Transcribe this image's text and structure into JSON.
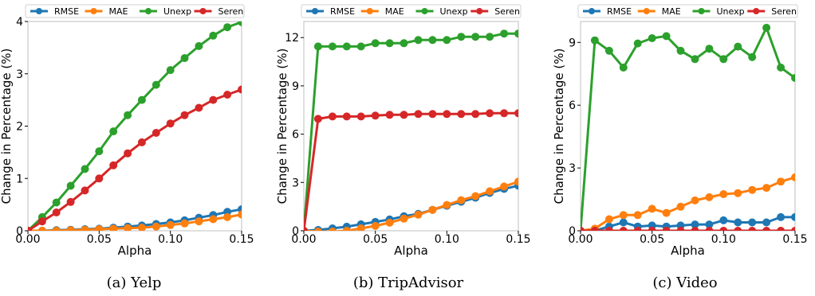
{
  "figure": {
    "panels": [
      {
        "caption": "(a) Yelp"
      },
      {
        "caption": "(b) TripAdvisor"
      },
      {
        "caption": "(c) Video"
      }
    ]
  },
  "chart_data": [
    {
      "type": "line",
      "title": "",
      "caption": "(a) Yelp",
      "xlabel": "Alpha",
      "ylabel": "Change in Percentage (%)",
      "xlim": [
        0.0,
        0.15
      ],
      "ylim": [
        0,
        4
      ],
      "xticks": [
        0.0,
        0.05,
        0.1,
        0.15
      ],
      "xtick_labels": [
        "0.00",
        "0.05",
        "0.10",
        "0.15"
      ],
      "yticks": [
        0,
        1,
        2,
        3,
        4
      ],
      "ytick_labels": [
        "0",
        "1",
        "2",
        "3",
        "4"
      ],
      "grid": false,
      "legend_position": "top",
      "x": [
        0.0,
        0.01,
        0.02,
        0.03,
        0.04,
        0.05,
        0.06,
        0.07,
        0.08,
        0.09,
        0.1,
        0.11,
        0.12,
        0.13,
        0.14,
        0.15
      ],
      "series": [
        {
          "name": "RMSE",
          "color": "#1f77b4",
          "values": [
            0,
            0.0,
            0.01,
            0.02,
            0.03,
            0.04,
            0.06,
            0.08,
            0.1,
            0.13,
            0.16,
            0.2,
            0.25,
            0.3,
            0.36,
            0.41
          ]
        },
        {
          "name": "MAE",
          "color": "#ff7f0e",
          "values": [
            0,
            0.0,
            0.0,
            0.01,
            0.02,
            0.03,
            0.04,
            0.05,
            0.06,
            0.08,
            0.11,
            0.14,
            0.18,
            0.22,
            0.26,
            0.31
          ]
        },
        {
          "name": "Unexp",
          "color": "#2ca02c",
          "values": [
            0,
            0.26,
            0.54,
            0.86,
            1.18,
            1.52,
            1.9,
            2.21,
            2.5,
            2.79,
            3.07,
            3.3,
            3.53,
            3.73,
            3.89,
            3.99
          ]
        },
        {
          "name": "Seren",
          "color": "#d62728",
          "values": [
            0,
            0.18,
            0.35,
            0.55,
            0.77,
            1.0,
            1.25,
            1.48,
            1.69,
            1.87,
            2.05,
            2.21,
            2.35,
            2.5,
            2.6,
            2.7
          ]
        }
      ]
    },
    {
      "type": "line",
      "title": "",
      "caption": "(b) TripAdvisor",
      "xlabel": "Alpha",
      "ylabel": "Change in Percentage (%)",
      "xlim": [
        0.0,
        0.15
      ],
      "ylim": [
        0,
        13
      ],
      "xticks": [
        0.0,
        0.05,
        0.1,
        0.15
      ],
      "xtick_labels": [
        "0.00",
        "0.05",
        "0.10",
        "0.15"
      ],
      "yticks": [
        0,
        3,
        6,
        9,
        12
      ],
      "ytick_labels": [
        "0",
        "3",
        "6",
        "9",
        "12"
      ],
      "grid": false,
      "legend_position": "top",
      "x": [
        0.0,
        0.01,
        0.02,
        0.03,
        0.04,
        0.05,
        0.06,
        0.07,
        0.08,
        0.09,
        0.1,
        0.11,
        0.12,
        0.13,
        0.14,
        0.15
      ],
      "series": [
        {
          "name": "RMSE",
          "color": "#1f77b4",
          "values": [
            0,
            0.05,
            0.15,
            0.25,
            0.4,
            0.55,
            0.7,
            0.9,
            1.05,
            1.3,
            1.55,
            1.8,
            2.05,
            2.35,
            2.6,
            2.8
          ]
        },
        {
          "name": "MAE",
          "color": "#ff7f0e",
          "values": [
            0,
            -0.05,
            -0.05,
            0.0,
            0.15,
            0.3,
            0.5,
            0.75,
            1.0,
            1.3,
            1.6,
            1.9,
            2.15,
            2.45,
            2.75,
            3.05
          ]
        },
        {
          "name": "Unexp",
          "color": "#2ca02c",
          "values": [
            0,
            11.45,
            11.45,
            11.45,
            11.45,
            11.65,
            11.65,
            11.65,
            11.85,
            11.85,
            11.85,
            12.05,
            12.05,
            12.05,
            12.25,
            12.25
          ]
        },
        {
          "name": "Seren",
          "color": "#d62728",
          "values": [
            0,
            6.95,
            7.1,
            7.1,
            7.1,
            7.15,
            7.2,
            7.2,
            7.25,
            7.25,
            7.25,
            7.25,
            7.25,
            7.3,
            7.3,
            7.3
          ]
        }
      ]
    },
    {
      "type": "line",
      "title": "",
      "caption": "(c) Video",
      "xlabel": "Alpha",
      "ylabel": "Change in Percentage (%)",
      "xlim": [
        0.0,
        0.15
      ],
      "ylim": [
        0,
        10
      ],
      "xticks": [
        0.0,
        0.05,
        0.1,
        0.15
      ],
      "xtick_labels": [
        "0.00",
        "0.05",
        "0.10",
        "0.15"
      ],
      "yticks": [
        0,
        3,
        6,
        9
      ],
      "ytick_labels": [
        "0",
        "3",
        "6",
        "9"
      ],
      "grid": false,
      "legend_position": "top",
      "x": [
        0.0,
        0.01,
        0.02,
        0.03,
        0.04,
        0.05,
        0.06,
        0.07,
        0.08,
        0.09,
        0.1,
        0.11,
        0.12,
        0.13,
        0.14,
        0.15
      ],
      "series": [
        {
          "name": "RMSE",
          "color": "#1f77b4",
          "values": [
            0,
            0.0,
            0.2,
            0.4,
            0.2,
            0.25,
            0.2,
            0.25,
            0.3,
            0.3,
            0.5,
            0.4,
            0.4,
            0.4,
            0.65,
            0.65
          ]
        },
        {
          "name": "MAE",
          "color": "#ff7f0e",
          "values": [
            0,
            0.1,
            0.55,
            0.75,
            0.75,
            1.05,
            0.85,
            1.15,
            1.45,
            1.6,
            1.75,
            1.8,
            1.95,
            2.05,
            2.35,
            2.55
          ]
        },
        {
          "name": "Unexp",
          "color": "#2ca02c",
          "values": [
            0,
            9.1,
            8.6,
            7.8,
            8.95,
            9.2,
            9.3,
            8.6,
            8.2,
            8.7,
            8.2,
            8.8,
            8.3,
            9.7,
            7.8,
            7.3
          ]
        },
        {
          "name": "Seren",
          "color": "#d62728",
          "values": [
            0,
            0.0,
            0.0,
            0.0,
            0.0,
            0.0,
            0.0,
            0.0,
            0.0,
            0.0,
            0.0,
            0.0,
            0.0,
            0.0,
            0.0,
            0.0
          ]
        }
      ]
    }
  ]
}
